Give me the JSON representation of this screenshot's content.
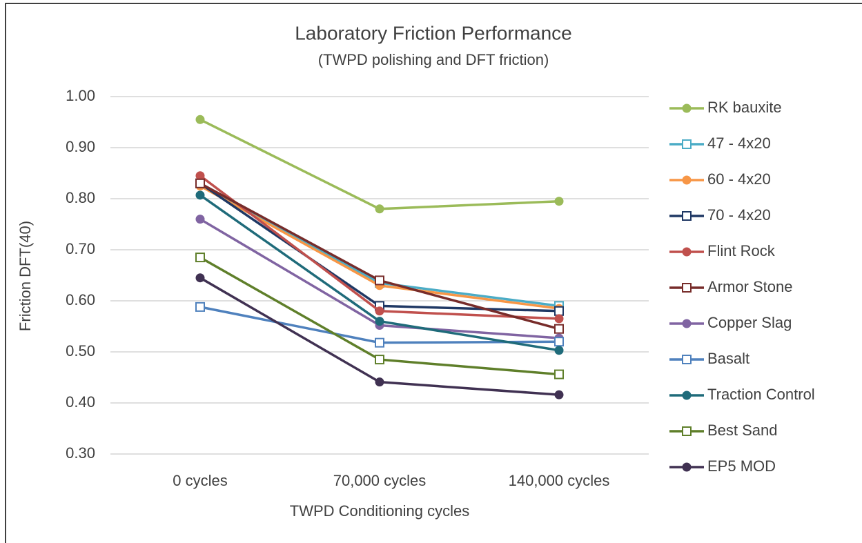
{
  "chart_data": {
    "type": "line",
    "title": "Laboratory Friction Performance",
    "subtitle": "(TWPD polishing and DFT friction)",
    "x_label": "TWPD Conditioning cycles",
    "y_label": "Friction DFT(40)",
    "categories": [
      "0 cycles",
      "70,000 cycles",
      "140,000 cycles"
    ],
    "ylim": [
      0.3,
      1.0
    ],
    "yticks": [
      {
        "value": 0.3,
        "label": "0.30"
      },
      {
        "value": 0.4,
        "label": "0.40"
      },
      {
        "value": 0.5,
        "label": "0.50"
      },
      {
        "value": 0.6,
        "label": "0.60"
      },
      {
        "value": 0.7,
        "label": "0.70"
      },
      {
        "value": 0.8,
        "label": "0.80"
      },
      {
        "value": 0.9,
        "label": "0.90"
      },
      {
        "value": 1.0,
        "label": "1.00"
      }
    ],
    "grid": true,
    "legend": "right",
    "series": [
      {
        "name": "RK bauxite",
        "color": "#9bbb59",
        "marker": "circle",
        "values": [
          0.955,
          0.78,
          0.795
        ]
      },
      {
        "name": "47 - 4x20",
        "color": "#4bacc6",
        "marker": "square",
        "values": [
          0.83,
          0.635,
          0.59
        ]
      },
      {
        "name": "60 - 4x20",
        "color": "#f79646",
        "marker": "circle",
        "values": [
          0.825,
          0.63,
          0.585
        ]
      },
      {
        "name": "70 - 4x20",
        "color": "#1f3864",
        "marker": "square",
        "values": [
          0.83,
          0.59,
          0.58
        ]
      },
      {
        "name": "Flint Rock",
        "color": "#c0504d",
        "marker": "circle",
        "values": [
          0.845,
          0.58,
          0.565
        ]
      },
      {
        "name": "Armor Stone",
        "color": "#772c2a",
        "marker": "square",
        "values": [
          0.83,
          0.64,
          0.545
        ]
      },
      {
        "name": "Copper Slag",
        "color": "#8064a2",
        "marker": "circle",
        "values": [
          0.76,
          0.552,
          0.527
        ]
      },
      {
        "name": "Basalt",
        "color": "#4f81bd",
        "marker": "square",
        "values": [
          0.588,
          0.518,
          0.52
        ]
      },
      {
        "name": "Traction Control",
        "color": "#1f6b7a",
        "marker": "circle",
        "values": [
          0.807,
          0.56,
          0.503
        ]
      },
      {
        "name": "Best Sand",
        "color": "#5f7f2a",
        "marker": "square",
        "values": [
          0.685,
          0.485,
          0.456
        ]
      },
      {
        "name": "EP5 MOD",
        "color": "#403152",
        "marker": "circle",
        "values": [
          0.645,
          0.441,
          0.416
        ]
      }
    ]
  }
}
